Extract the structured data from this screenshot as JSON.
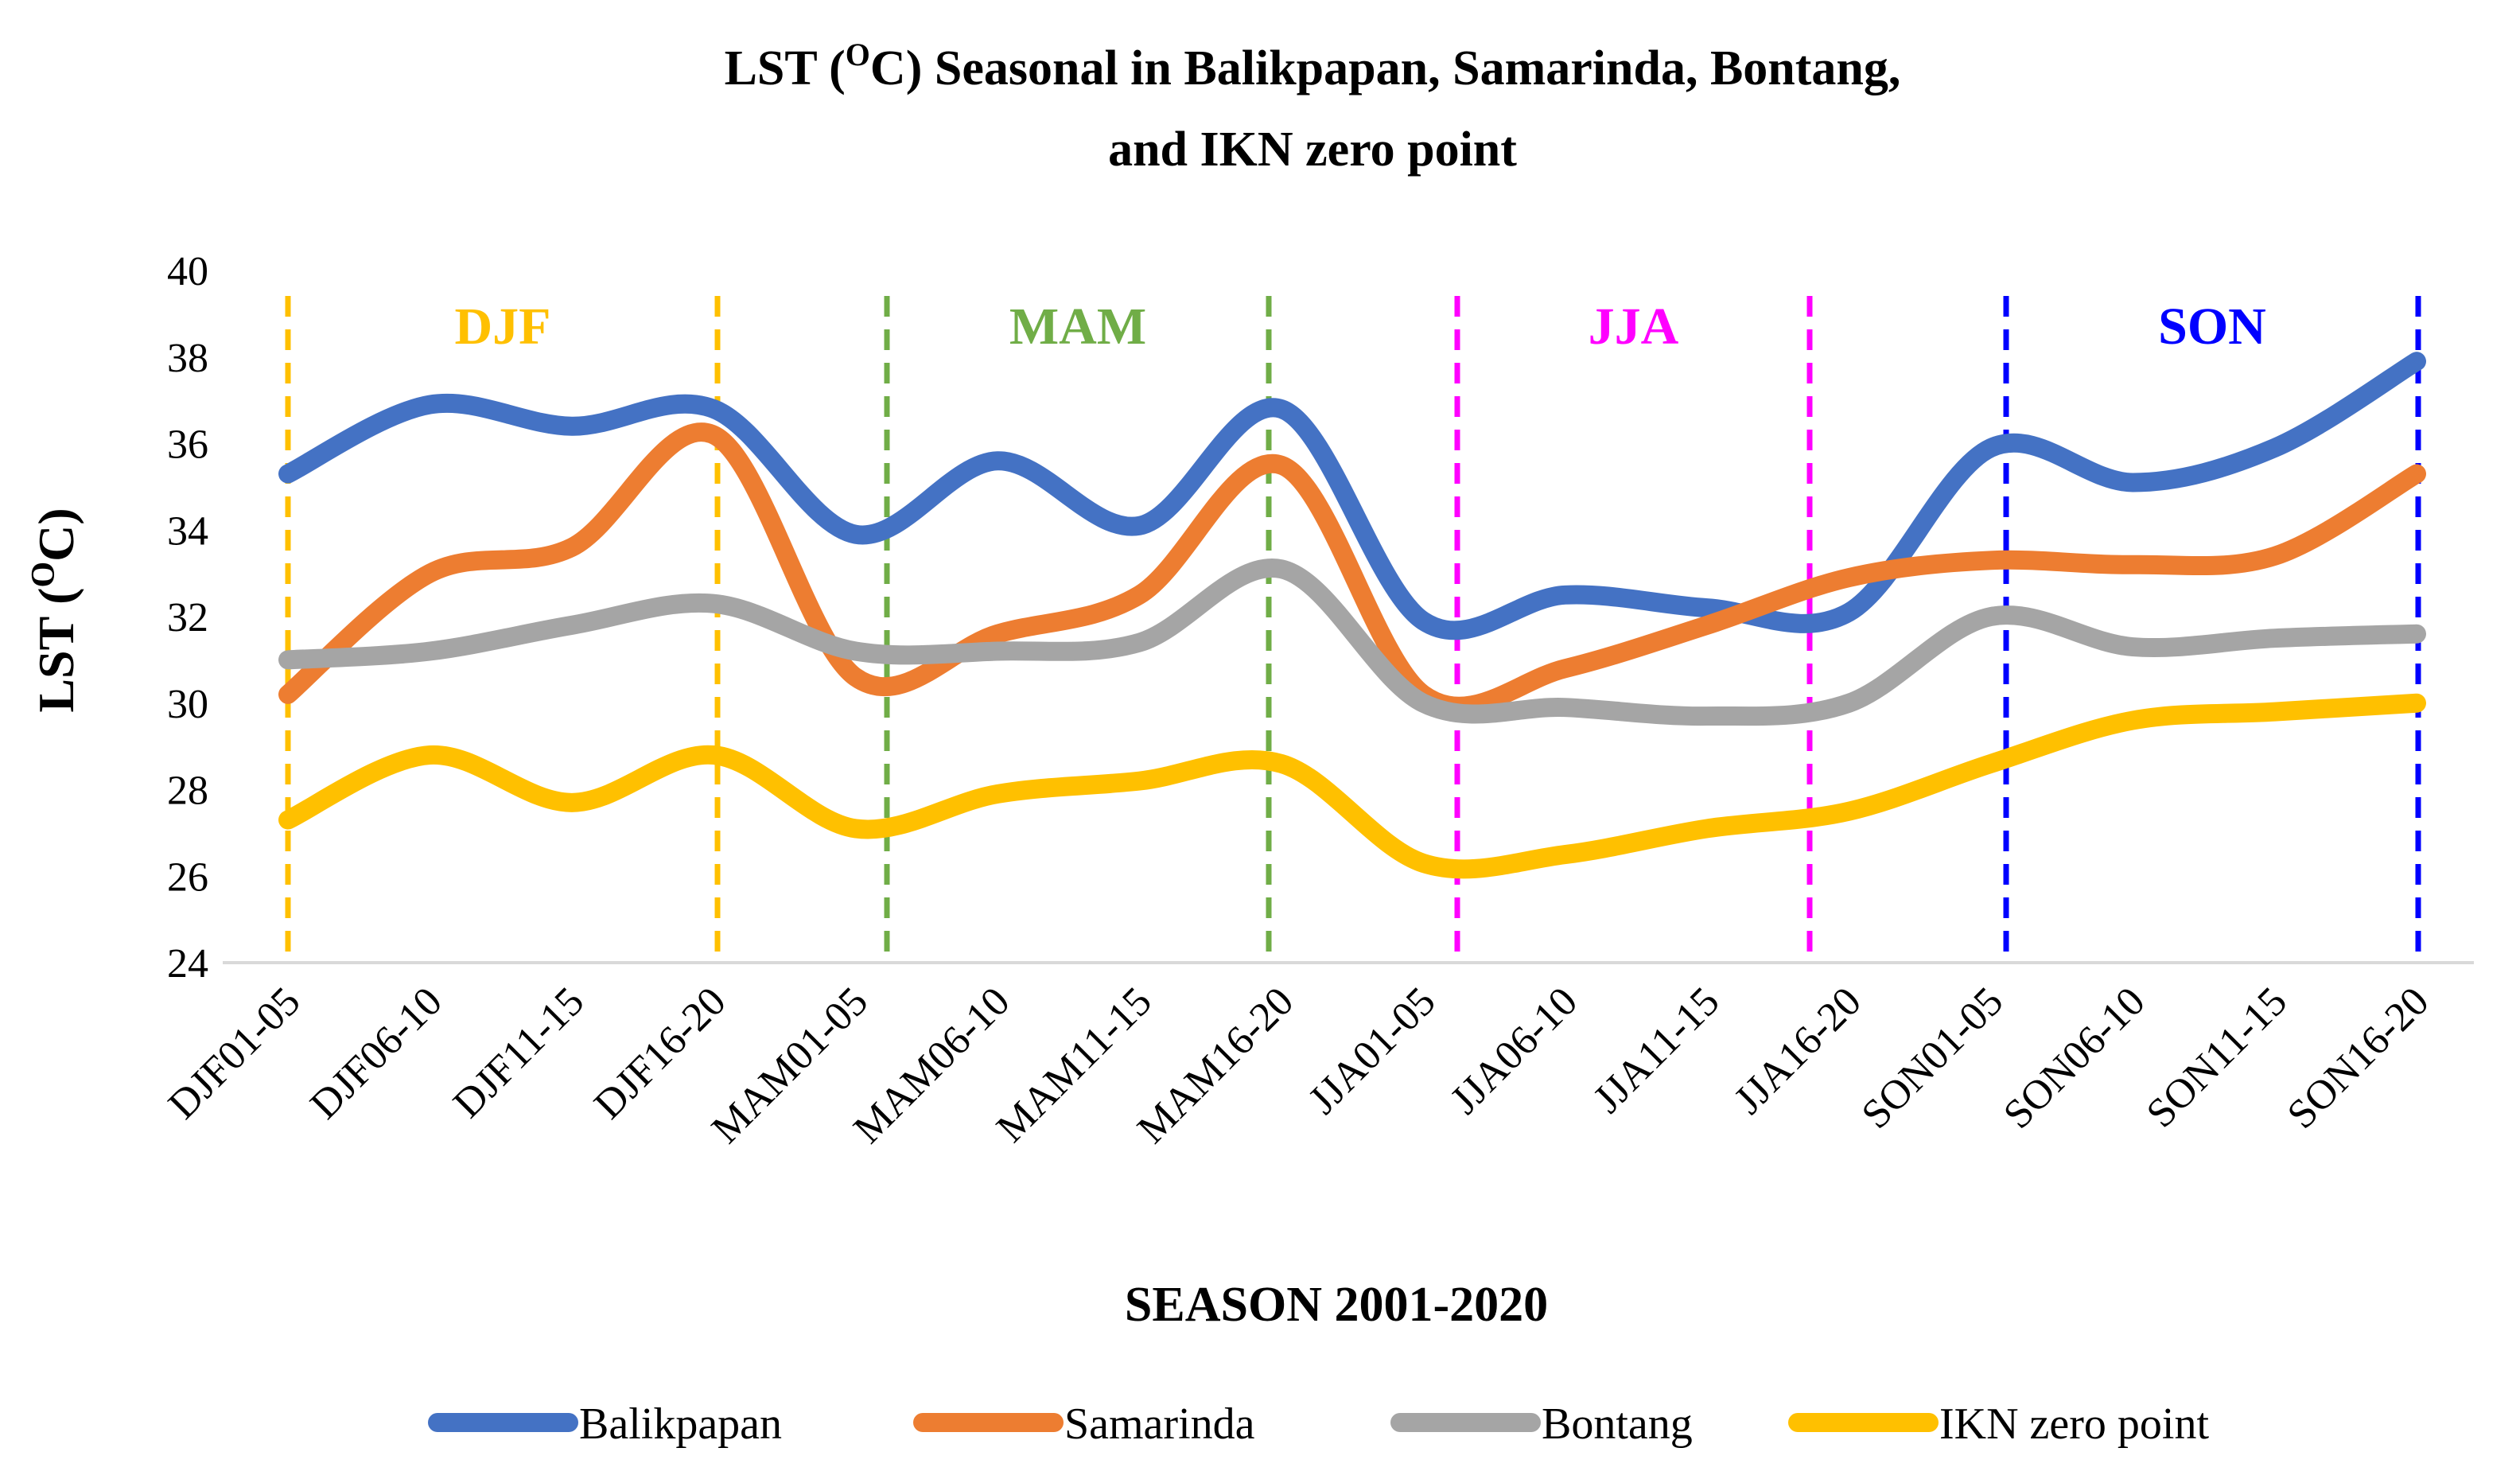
{
  "chart_data": {
    "type": "line",
    "title_line1": "LST (",
    "title_sup": "O",
    "title_line1_rest": "C) Seasonal in Balikpapan, Samarinda, Bontang,",
    "title_line2": "and IKN zero point",
    "xlabel": "SEASON 2001-2020",
    "ylabel_main": "LST (",
    "ylabel_sup": "O",
    "ylabel_end": "C)",
    "ylim": [
      24,
      40
    ],
    "yticks": [
      24,
      26,
      28,
      30,
      32,
      34,
      36,
      38,
      40
    ],
    "categories": [
      "DJF01-05",
      "DJF06-10",
      "DJF11-15",
      "DJF16-20",
      "MAM01-05",
      "MAM06-10",
      "MAM11-15",
      "MAM16-20",
      "JJA01-05",
      "JJA06-10",
      "JJA11-15",
      "JJA16-20",
      "SON01-05",
      "SON06-10",
      "SON11-15",
      "SON16-20"
    ],
    "series": [
      {
        "name": "Balikpapan",
        "color": "#4472C4",
        "values": [
          35.3,
          36.9,
          36.4,
          36.8,
          33.9,
          35.6,
          34.1,
          36.8,
          31.9,
          32.5,
          32.2,
          32.1,
          35.9,
          35.1,
          35.9,
          37.9
        ]
      },
      {
        "name": "Samarinda",
        "color": "#ED7D31",
        "values": [
          30.2,
          33.0,
          33.6,
          36.2,
          30.6,
          31.6,
          32.5,
          35.5,
          30.2,
          30.8,
          31.8,
          32.9,
          33.3,
          33.2,
          33.4,
          35.3
        ]
      },
      {
        "name": "Bontang",
        "color": "#A5A5A5",
        "values": [
          31.0,
          31.2,
          31.8,
          32.3,
          31.2,
          31.2,
          31.4,
          33.1,
          30.0,
          29.9,
          29.7,
          30.0,
          32.0,
          31.3,
          31.5,
          31.6
        ]
      },
      {
        "name": "IKN zero point",
        "color": "#FFC000",
        "values": [
          27.3,
          28.8,
          27.7,
          28.8,
          27.1,
          27.9,
          28.2,
          28.6,
          26.3,
          26.5,
          27.1,
          27.5,
          28.6,
          29.6,
          29.8,
          30.0
        ]
      }
    ],
    "season_markers": [
      {
        "label": "DJF",
        "color": "#FFC000",
        "boundaries": [
          0,
          3
        ],
        "label_center": 1.5
      },
      {
        "label": "MAM",
        "color": "#70AD47",
        "boundaries": [
          4,
          7
        ],
        "label_center": 5.5
      },
      {
        "label": "JJA",
        "color": "#FF00FF",
        "boundaries": [
          8,
          10
        ],
        "label_center": 9.5
      },
      {
        "label": "SON",
        "color": "#0000FF",
        "boundaries": [
          11,
          15
        ],
        "label_center": 13.5
      }
    ],
    "legend_position": "bottom",
    "grid": false
  }
}
